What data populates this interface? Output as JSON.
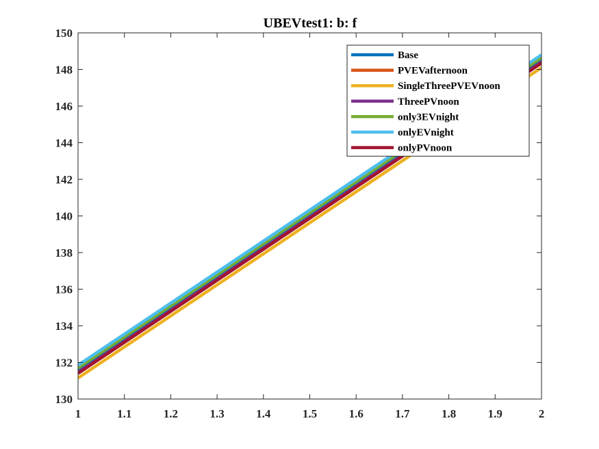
{
  "chart_data": {
    "type": "line",
    "title": "UBEVtest1: b: f",
    "xlabel": "",
    "ylabel": "",
    "xlim": [
      1,
      2
    ],
    "ylim": [
      130,
      150
    ],
    "xticks": [
      1,
      1.1,
      1.2,
      1.3,
      1.4,
      1.5,
      1.6,
      1.7,
      1.8,
      1.9,
      2
    ],
    "xtick_labels": [
      "1",
      "1.1",
      "1.2",
      "1.3",
      "1.4",
      "1.5",
      "1.6",
      "1.7",
      "1.8",
      "1.9",
      "2"
    ],
    "yticks": [
      130,
      132,
      134,
      136,
      138,
      140,
      142,
      144,
      146,
      148,
      150
    ],
    "ytick_labels": [
      "130",
      "132",
      "134",
      "136",
      "138",
      "140",
      "142",
      "144",
      "146",
      "148",
      "150"
    ],
    "grid": false,
    "legend_position": "top-right",
    "series": [
      {
        "name": "Base",
        "color": "#0072BD",
        "x": [
          1,
          2
        ],
        "y": [
          131.6,
          148.55
        ]
      },
      {
        "name": "PVEVafternoon",
        "color": "#D95319",
        "x": [
          1,
          2
        ],
        "y": [
          131.45,
          148.4
        ]
      },
      {
        "name": "SingleThreePVEVnoon",
        "color": "#EDB120",
        "x": [
          1,
          2
        ],
        "y": [
          131.15,
          148.1
        ]
      },
      {
        "name": "ThreePVnoon",
        "color": "#7E2F8E",
        "x": [
          1,
          2
        ],
        "y": [
          131.45,
          148.4
        ]
      },
      {
        "name": "only3EVnight",
        "color": "#77AC30",
        "x": [
          1,
          2
        ],
        "y": [
          131.7,
          148.65
        ]
      },
      {
        "name": "onlyEVnight",
        "color": "#4DBEEE",
        "x": [
          1,
          2
        ],
        "y": [
          131.85,
          148.8
        ]
      },
      {
        "name": "onlyPVnoon",
        "color": "#A2142F",
        "x": [
          1,
          2
        ],
        "y": [
          131.4,
          148.35
        ]
      }
    ]
  }
}
